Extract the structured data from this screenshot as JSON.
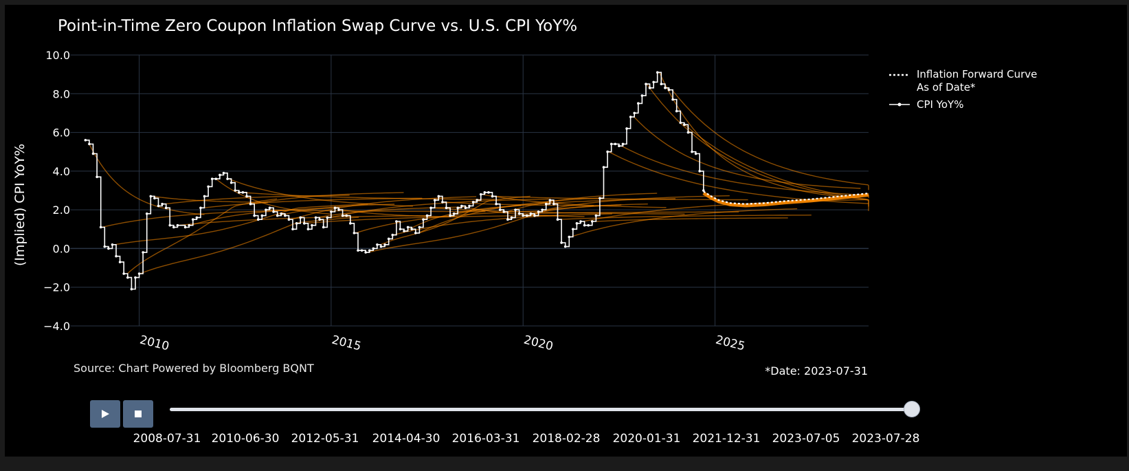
{
  "chart_data": {
    "type": "line",
    "title": "Point-in-Time Zero Coupon Inflation Swap Curve vs. U.S. CPI YoY%",
    "ylabel": "(Implied) CPI YoY%",
    "xlabel": "",
    "ylim": [
      -4,
      10
    ],
    "xlim": [
      2008.2,
      2029.0
    ],
    "yticks": [
      "10.0",
      "8.0",
      "6.0",
      "4.0",
      "2.0",
      "0.0",
      "−2.0",
      "−4.0"
    ],
    "xticks": [
      {
        "label": "2010",
        "value": 2010
      },
      {
        "label": "2015",
        "value": 2015
      },
      {
        "label": "2020",
        "value": 2020
      },
      {
        "label": "2025",
        "value": 2025
      }
    ],
    "source": "Source: Chart Powered by Bloomberg BQNT",
    "date_label": "*Date: 2023-07-31",
    "legend": {
      "position": "top-right",
      "forward_label_line1": "Inflation Forward Curve",
      "forward_label_line2": "As of Date*",
      "cpi_label": "CPI YoY%"
    },
    "colors": {
      "background": "#000000",
      "grid": "#2a3545",
      "text": "#ffffff",
      "cpi": "#ffffff",
      "forward": "#ffffff",
      "history_curves": "#ff8c00"
    },
    "series": [
      {
        "name": "CPI YoY%",
        "style": "step-markers",
        "points": [
          [
            2008.6,
            5.6
          ],
          [
            2008.7,
            5.4
          ],
          [
            2008.8,
            4.9
          ],
          [
            2008.9,
            3.7
          ],
          [
            2009.0,
            1.1
          ],
          [
            2009.1,
            0.1
          ],
          [
            2009.2,
            0.0
          ],
          [
            2009.3,
            0.2
          ],
          [
            2009.4,
            -0.4
          ],
          [
            2009.5,
            -0.7
          ],
          [
            2009.6,
            -1.3
          ],
          [
            2009.7,
            -1.5
          ],
          [
            2009.8,
            -2.1
          ],
          [
            2009.9,
            -1.5
          ],
          [
            2010.0,
            -1.3
          ],
          [
            2010.1,
            -0.2
          ],
          [
            2010.2,
            1.8
          ],
          [
            2010.3,
            2.7
          ],
          [
            2010.4,
            2.6
          ],
          [
            2010.5,
            2.2
          ],
          [
            2010.6,
            2.3
          ],
          [
            2010.7,
            2.1
          ],
          [
            2010.8,
            1.2
          ],
          [
            2010.9,
            1.1
          ],
          [
            2011.0,
            1.2
          ],
          [
            2011.2,
            1.1
          ],
          [
            2011.3,
            1.2
          ],
          [
            2011.4,
            1.5
          ],
          [
            2011.5,
            1.6
          ],
          [
            2011.6,
            2.1
          ],
          [
            2011.7,
            2.7
          ],
          [
            2011.8,
            3.2
          ],
          [
            2011.9,
            3.6
          ],
          [
            2012.0,
            3.6
          ],
          [
            2012.1,
            3.8
          ],
          [
            2012.2,
            3.9
          ],
          [
            2012.3,
            3.6
          ],
          [
            2012.4,
            3.4
          ],
          [
            2012.5,
            3.0
          ],
          [
            2012.6,
            2.9
          ],
          [
            2012.7,
            2.9
          ],
          [
            2012.8,
            2.7
          ],
          [
            2012.9,
            2.3
          ],
          [
            2013.0,
            1.7
          ],
          [
            2013.1,
            1.5
          ],
          [
            2013.2,
            1.7
          ],
          [
            2013.3,
            2.0
          ],
          [
            2013.4,
            2.1
          ],
          [
            2013.5,
            1.9
          ],
          [
            2013.6,
            1.7
          ],
          [
            2013.7,
            1.8
          ],
          [
            2013.8,
            1.7
          ],
          [
            2013.9,
            1.5
          ],
          [
            2014.0,
            1.0
          ],
          [
            2014.1,
            1.3
          ],
          [
            2014.2,
            1.6
          ],
          [
            2014.3,
            1.3
          ],
          [
            2014.4,
            1.0
          ],
          [
            2014.5,
            1.2
          ],
          [
            2014.6,
            1.6
          ],
          [
            2014.7,
            1.5
          ],
          [
            2014.8,
            1.1
          ],
          [
            2014.9,
            1.6
          ],
          [
            2015.0,
            1.9
          ],
          [
            2015.1,
            2.1
          ],
          [
            2015.2,
            2.0
          ],
          [
            2015.3,
            1.7
          ],
          [
            2015.4,
            1.7
          ],
          [
            2015.5,
            1.3
          ],
          [
            2015.6,
            0.8
          ],
          [
            2015.7,
            -0.1
          ],
          [
            2015.8,
            -0.1
          ],
          [
            2015.9,
            -0.2
          ],
          [
            2016.0,
            -0.1
          ],
          [
            2016.1,
            0.0
          ],
          [
            2016.2,
            0.2
          ],
          [
            2016.3,
            0.1
          ],
          [
            2016.4,
            0.2
          ],
          [
            2016.5,
            0.5
          ],
          [
            2016.6,
            0.7
          ],
          [
            2016.7,
            1.4
          ],
          [
            2016.8,
            1.0
          ],
          [
            2016.9,
            0.9
          ],
          [
            2017.0,
            1.1
          ],
          [
            2017.1,
            1.0
          ],
          [
            2017.2,
            0.8
          ],
          [
            2017.3,
            1.1
          ],
          [
            2017.4,
            1.5
          ],
          [
            2017.5,
            1.7
          ],
          [
            2017.6,
            2.1
          ],
          [
            2017.7,
            2.5
          ],
          [
            2017.8,
            2.7
          ],
          [
            2017.9,
            2.4
          ],
          [
            2018.0,
            2.1
          ],
          [
            2018.1,
            1.7
          ],
          [
            2018.2,
            1.8
          ],
          [
            2018.3,
            2.1
          ],
          [
            2018.4,
            2.2
          ],
          [
            2018.5,
            2.1
          ],
          [
            2018.6,
            2.2
          ],
          [
            2018.7,
            2.4
          ],
          [
            2018.8,
            2.5
          ],
          [
            2018.9,
            2.8
          ],
          [
            2019.0,
            2.9
          ],
          [
            2019.1,
            2.9
          ],
          [
            2019.2,
            2.7
          ],
          [
            2019.3,
            2.3
          ],
          [
            2019.4,
            2.0
          ],
          [
            2019.5,
            1.9
          ],
          [
            2019.6,
            1.5
          ],
          [
            2019.7,
            1.6
          ],
          [
            2019.8,
            2.0
          ],
          [
            2019.9,
            1.8
          ],
          [
            2020.0,
            1.7
          ],
          [
            2020.1,
            1.7
          ],
          [
            2020.2,
            1.8
          ],
          [
            2020.3,
            1.7
          ],
          [
            2020.4,
            1.9
          ],
          [
            2020.5,
            2.0
          ],
          [
            2020.6,
            2.3
          ],
          [
            2020.7,
            2.5
          ],
          [
            2020.8,
            2.3
          ],
          [
            2020.9,
            1.5
          ],
          [
            2021.0,
            0.3
          ],
          [
            2021.1,
            0.1
          ],
          [
            2021.2,
            0.6
          ],
          [
            2021.3,
            1.0
          ],
          [
            2021.4,
            1.3
          ],
          [
            2021.5,
            1.4
          ],
          [
            2021.6,
            1.2
          ],
          [
            2021.7,
            1.2
          ],
          [
            2021.8,
            1.4
          ],
          [
            2021.9,
            1.7
          ],
          [
            2022.0,
            2.6
          ],
          [
            2022.1,
            4.2
          ],
          [
            2022.2,
            5.0
          ],
          [
            2022.3,
            5.4
          ],
          [
            2022.4,
            5.4
          ],
          [
            2022.5,
            5.3
          ],
          [
            2022.6,
            5.4
          ],
          [
            2022.7,
            6.2
          ],
          [
            2022.8,
            6.8
          ],
          [
            2022.9,
            7.0
          ],
          [
            2023.0,
            7.5
          ],
          [
            2023.1,
            7.9
          ],
          [
            2023.2,
            8.5
          ],
          [
            2023.3,
            8.3
          ],
          [
            2023.4,
            8.6
          ],
          [
            2023.5,
            9.1
          ],
          [
            2023.6,
            8.5
          ],
          [
            2023.7,
            8.3
          ],
          [
            2023.8,
            8.2
          ],
          [
            2023.9,
            7.7
          ],
          [
            2024.0,
            7.1
          ],
          [
            2024.1,
            6.5
          ],
          [
            2024.2,
            6.4
          ],
          [
            2024.3,
            6.0
          ],
          [
            2024.4,
            5.0
          ],
          [
            2024.5,
            4.9
          ],
          [
            2024.6,
            4.0
          ],
          [
            2024.7,
            3.0
          ]
        ]
      },
      {
        "name": "Inflation Forward Curve As of Date*",
        "style": "dotted",
        "points": [
          [
            2024.7,
            2.95
          ],
          [
            2024.9,
            2.7
          ],
          [
            2025.1,
            2.5
          ],
          [
            2025.4,
            2.35
          ],
          [
            2025.8,
            2.3
          ],
          [
            2026.3,
            2.35
          ],
          [
            2026.8,
            2.45
          ],
          [
            2027.5,
            2.55
          ],
          [
            2028.0,
            2.65
          ],
          [
            2028.5,
            2.75
          ],
          [
            2029.0,
            2.85
          ]
        ]
      }
    ]
  },
  "slider": {
    "steps": [
      "2008-07-31",
      "2010-06-30",
      "2012-05-31",
      "2014-04-30",
      "2016-03-31",
      "2018-02-28",
      "2020-01-31",
      "2021-12-31",
      "2023-07-05",
      "2023-07-28"
    ],
    "current_fraction": 1.0
  }
}
